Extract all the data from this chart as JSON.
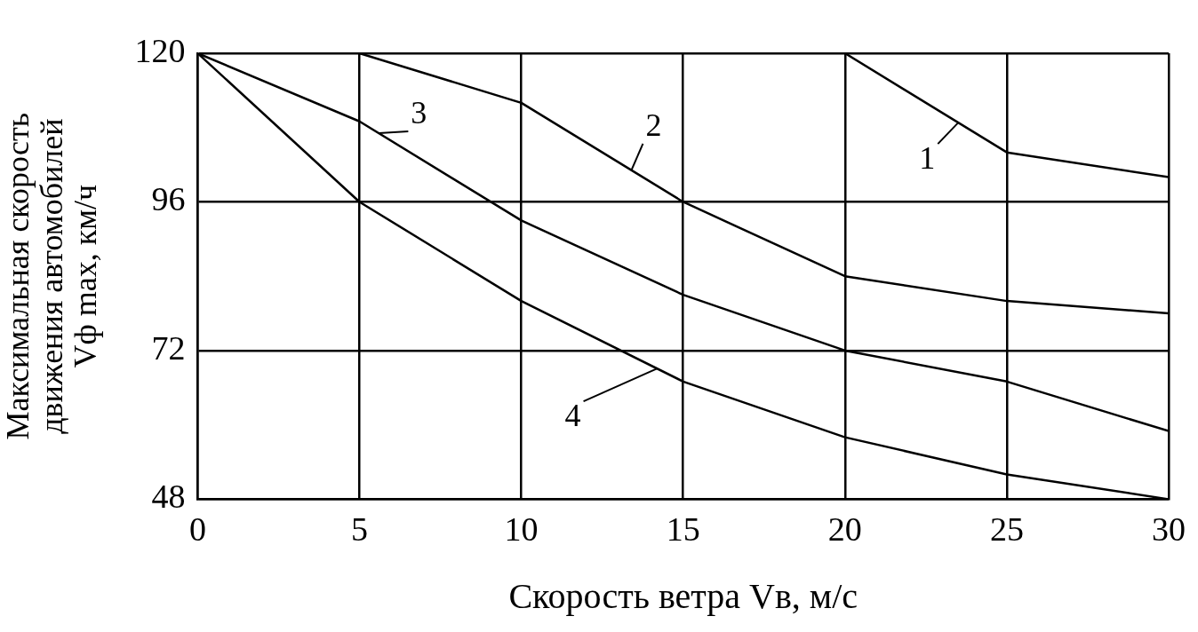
{
  "chart_data": {
    "type": "line",
    "xlabel": "Скорость ветра Vв, м/с",
    "ylabel": "Максимальная скорость\nдвижения автомобилей\nVф max, км/ч",
    "xlim": [
      0,
      30
    ],
    "xticks": [
      0,
      5,
      10,
      15,
      20,
      25,
      30
    ],
    "ylim": [
      48,
      120
    ],
    "yticks": [
      48,
      72,
      96,
      120
    ],
    "grid": true,
    "legend": false,
    "marker": "none",
    "line_style": "solid",
    "series": [
      {
        "color": "#000000",
        "x": [
          20,
          25,
          30
        ],
        "values": [
          120,
          104,
          100
        ]
      },
      {
        "color": "#000000",
        "x": [
          5,
          10,
          15,
          20,
          25,
          30
        ],
        "values": [
          120,
          112,
          96,
          84,
          80,
          78
        ]
      },
      {
        "color": "#000000",
        "x": [
          0,
          5,
          10,
          15,
          20,
          25,
          30
        ],
        "values": [
          120,
          109,
          93,
          81,
          72,
          67,
          59
        ]
      },
      {
        "color": "#000000",
        "x": [
          0,
          5,
          10,
          15,
          20,
          25,
          30
        ],
        "values": [
          120,
          96,
          80,
          67,
          58,
          52,
          48
        ]
      }
    ],
    "annotations": [
      {
        "text": "1",
        "x": 23.5,
        "y": 108.8
      },
      {
        "text": "2",
        "x": 13.4,
        "y": 101.1
      },
      {
        "text": "3",
        "x": 5.6,
        "y": 107.1
      },
      {
        "text": "4",
        "x": 14.2,
        "y": 69.1
      }
    ]
  }
}
